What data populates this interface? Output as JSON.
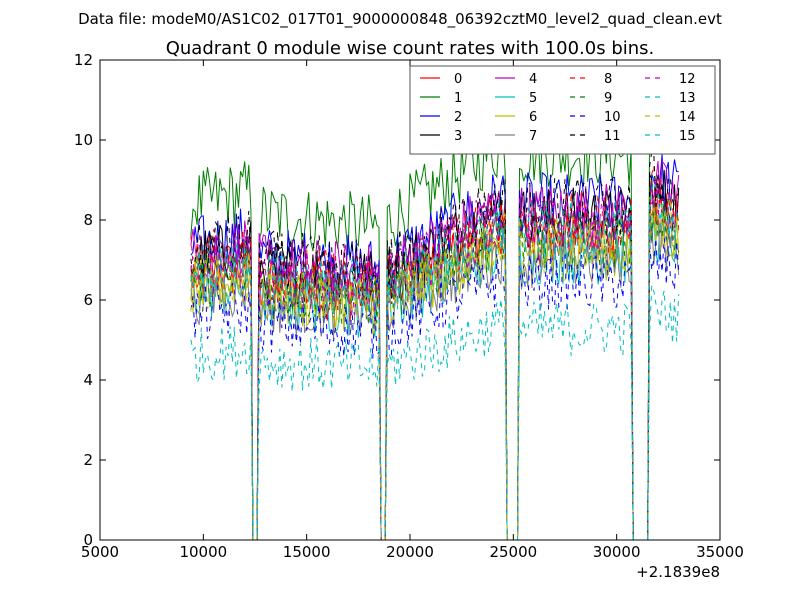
{
  "header": {
    "datafile_label": "Data file: modeM0/AS1C02_017T01_9000000848_06392cztM0_level2_quad_clean.evt"
  },
  "chart_data": {
    "type": "line",
    "title": "Quadrant 0 module wise count rates with 100.0s bins.",
    "xlabel": "",
    "ylabel": "",
    "x_offset_label": "+2.1839e8",
    "xlim": [
      5000,
      35000
    ],
    "ylim": [
      0,
      12
    ],
    "x_ticks": [
      5000,
      10000,
      15000,
      20000,
      25000,
      30000,
      35000
    ],
    "y_ticks": [
      0,
      2,
      4,
      6,
      8,
      10,
      12
    ],
    "x_tick_labels": [
      "5000",
      "10000",
      "15000",
      "20000",
      "25000",
      "30000",
      "35000"
    ],
    "y_tick_labels": [
      "0",
      "2",
      "4",
      "6",
      "8",
      "10",
      "12"
    ],
    "legend_position": "top-right",
    "bin_seconds": 100.0,
    "x_start": 9400,
    "x_end": 33000,
    "gaps": [
      {
        "start": 12300,
        "end": 12700
      },
      {
        "start": 18500,
        "end": 18900
      },
      {
        "start": 24600,
        "end": 25300
      },
      {
        "start": 30700,
        "end": 31600
      }
    ],
    "segment_trend": [
      {
        "start": 9400,
        "end": 12300,
        "factor_start": 1.0,
        "factor_end": 1.04
      },
      {
        "start": 12700,
        "end": 18500,
        "factor_start": 0.97,
        "factor_end": 0.93
      },
      {
        "start": 18900,
        "end": 24600,
        "factor_start": 0.95,
        "factor_end": 1.18
      },
      {
        "start": 25300,
        "end": 30700,
        "factor_start": 1.15,
        "factor_end": 1.15
      },
      {
        "start": 31600,
        "end": 33000,
        "factor_start": 1.25,
        "factor_end": 1.2
      }
    ],
    "series": [
      {
        "name": "0",
        "mean": 6.6,
        "color": "#ff0000",
        "dash": "solid"
      },
      {
        "name": "1",
        "mean": 8.4,
        "color": "#008000",
        "dash": "solid"
      },
      {
        "name": "2",
        "mean": 7.3,
        "color": "#0000ff",
        "dash": "solid"
      },
      {
        "name": "3",
        "mean": 7.0,
        "color": "#000000",
        "dash": "solid"
      },
      {
        "name": "4",
        "mean": 7.1,
        "color": "#bf00bf",
        "dash": "solid"
      },
      {
        "name": "5",
        "mean": 6.2,
        "color": "#00bfbf",
        "dash": "solid"
      },
      {
        "name": "6",
        "mean": 6.3,
        "color": "#bfbf00",
        "dash": "solid"
      },
      {
        "name": "7",
        "mean": 6.1,
        "color": "#7f7f7f",
        "dash": "solid"
      },
      {
        "name": "8",
        "mean": 6.9,
        "color": "#ff0000",
        "dash": "dashed"
      },
      {
        "name": "9",
        "mean": 6.5,
        "color": "#008000",
        "dash": "dashed"
      },
      {
        "name": "10",
        "mean": 5.6,
        "color": "#0000ff",
        "dash": "dashed"
      },
      {
        "name": "11",
        "mean": 7.2,
        "color": "#000000",
        "dash": "dashed"
      },
      {
        "name": "12",
        "mean": 6.8,
        "color": "#bf00bf",
        "dash": "dashed"
      },
      {
        "name": "13",
        "mean": 4.6,
        "color": "#00bfbf",
        "dash": "dashed"
      },
      {
        "name": "14",
        "mean": 6.4,
        "color": "#bfbf00",
        "dash": "dashed"
      },
      {
        "name": "15",
        "mean": 6.7,
        "color": "#00bfbf",
        "dash": "dashed"
      }
    ]
  }
}
